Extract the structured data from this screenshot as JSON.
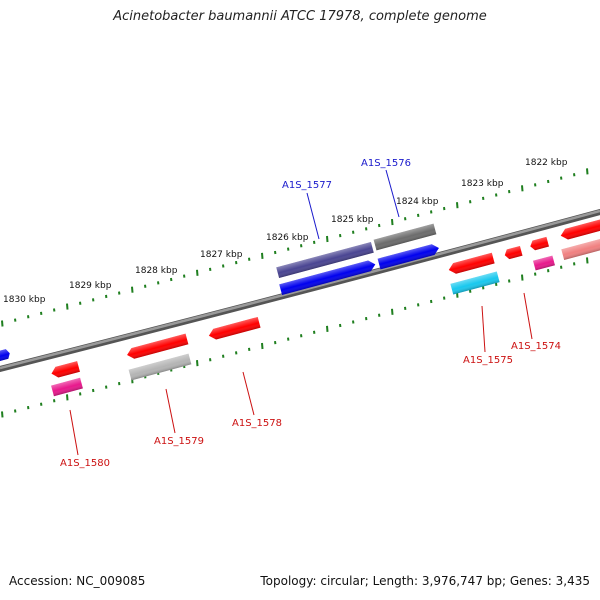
{
  "title": "Acinetobacter baumannii ATCC 17978, complete genome",
  "footer": {
    "accession": "Accession: NC_009085",
    "summary": "Topology: circular; Length: 3,976,747 bp; Genes: 3,435"
  },
  "scale": {
    "tick_labels": [
      "1830 kbp",
      "1829 kbp",
      "1828 kbp",
      "1827 kbp",
      "1826 kbp",
      "1825 kbp",
      "1824 kbp",
      "1823 kbp",
      "1822 kbp"
    ]
  },
  "gene_labels": {
    "forward": [
      "A1S_1577",
      "A1S_1576"
    ],
    "reverse": [
      "A1S_1580",
      "A1S_1579",
      "A1S_1578",
      "A1S_1575",
      "A1S_1574"
    ]
  },
  "colors": {
    "backbone": "#7f7f7f",
    "tick": "#1f7f1f",
    "forward_label": "#1a1acc",
    "reverse_label": "#cc1111",
    "gene_red": "#ff0000",
    "gene_blue": "#0000ee",
    "gene_navy": "#4a4592",
    "gene_gray": "#6c6c6c",
    "gene_magenta": "#e8188c",
    "gene_cyan": "#18c8ee",
    "gene_lightgray": "#b4b4b4",
    "gene_salmon": "#f08080"
  }
}
